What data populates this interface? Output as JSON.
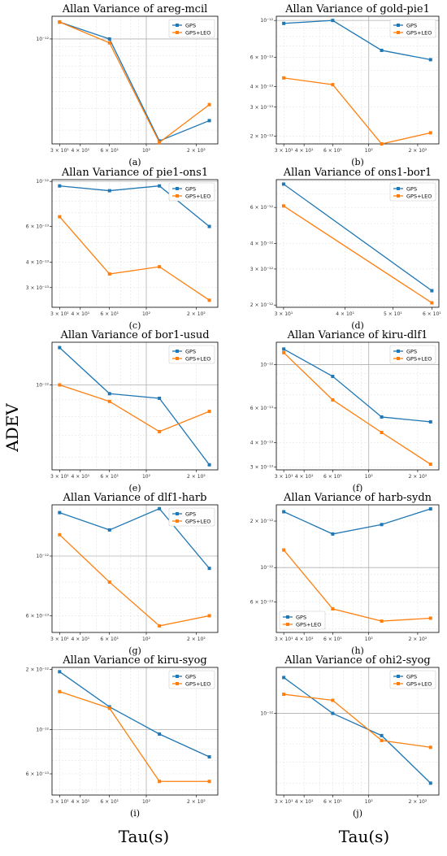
{
  "figure": {
    "ylabel": "ADEV",
    "xlabel": "Tau(s)",
    "colors": {
      "GPS": "#1f77b4",
      "GPS+LEO": "#ff7f0e"
    }
  },
  "chart_data": [
    {
      "type": "line",
      "title": "Allan Variance of areg-mcil",
      "caption": "(a)",
      "x": [
        30,
        60,
        120,
        240
      ],
      "xlim": [
        27,
        270
      ],
      "ylim": [
        2.5e-13,
        1.35e-12
      ],
      "log_x": true,
      "log_y": true,
      "yticks": [
        {
          "v": 1e-12,
          "label": "10⁻¹²"
        }
      ],
      "xticks": [
        {
          "v": 30,
          "label": "3 × 10¹"
        },
        {
          "v": 40,
          "label": "4 × 10¹"
        },
        {
          "v": 60,
          "label": "6 × 10¹"
        },
        {
          "v": 100,
          "label": "10²"
        },
        {
          "v": 200,
          "label": "2 × 10²"
        }
      ],
      "legend": "top-right",
      "series": [
        {
          "name": "GPS",
          "values": [
            1.25e-12,
            1e-12,
            2.6e-13,
            3.4e-13
          ]
        },
        {
          "name": "GPS+LEO",
          "values": [
            1.25e-12,
            9.5e-13,
            2.55e-13,
            4.2e-13
          ]
        }
      ]
    },
    {
      "type": "line",
      "title": "Allan Variance of gold-pie1",
      "caption": "(b)",
      "x": [
        30,
        60,
        120,
        240
      ],
      "xlim": [
        27,
        270
      ],
      "ylim": [
        1.8e-13,
        1.06e-12
      ],
      "log_x": true,
      "log_y": true,
      "yticks": [
        {
          "v": 2e-13,
          "label": "2 × 10⁻¹³"
        },
        {
          "v": 3e-13,
          "label": "3 × 10⁻¹³"
        },
        {
          "v": 4e-13,
          "label": "4 × 10⁻¹³"
        },
        {
          "v": 6e-13,
          "label": "6 × 10⁻¹³"
        },
        {
          "v": 1e-12,
          "label": "10⁻¹²"
        }
      ],
      "xticks": [
        {
          "v": 30,
          "label": "3 × 10¹"
        },
        {
          "v": 40,
          "label": "4 × 10¹"
        },
        {
          "v": 60,
          "label": "6 × 10¹"
        },
        {
          "v": 100,
          "label": "10²"
        },
        {
          "v": 200,
          "label": "2 × 10²"
        }
      ],
      "legend": "top-right",
      "series": [
        {
          "name": "GPS",
          "values": [
            9.6e-13,
            1e-12,
            6.6e-13,
            5.8e-13
          ]
        },
        {
          "name": "GPS+LEO",
          "values": [
            4.5e-13,
            4.1e-13,
            1.8e-13,
            2.1e-13
          ]
        }
      ]
    },
    {
      "type": "line",
      "title": "Allan Variance of pie1-ons1",
      "caption": "(c)",
      "x": [
        30,
        60,
        120,
        240
      ],
      "xlim": [
        27,
        270
      ],
      "ylim": [
        2.4e-13,
        1.02e-12
      ],
      "log_x": true,
      "log_y": true,
      "yticks": [
        {
          "v": 3e-13,
          "label": "3 × 10⁻¹³"
        },
        {
          "v": 4e-13,
          "label": "4 × 10⁻¹³"
        },
        {
          "v": 6e-13,
          "label": "6 × 10⁻¹³"
        },
        {
          "v": 1e-12,
          "label": "10⁻¹²"
        }
      ],
      "xticks": [
        {
          "v": 30,
          "label": "3 × 10¹"
        },
        {
          "v": 40,
          "label": "4 × 10¹"
        },
        {
          "v": 60,
          "label": "6 × 10¹"
        },
        {
          "v": 100,
          "label": "10²"
        },
        {
          "v": 200,
          "label": "2 × 10²"
        }
      ],
      "legend": "top-right",
      "series": [
        {
          "name": "GPS",
          "values": [
            9.5e-13,
            9e-13,
            9.5e-13,
            6e-13
          ]
        },
        {
          "name": "GPS+LEO",
          "values": [
            6.7e-13,
            3.5e-13,
            3.8e-13,
            2.6e-13
          ]
        }
      ]
    },
    {
      "type": "line",
      "title": "Allan Variance of ons1-bor1",
      "caption": "(d)",
      "x": [
        30,
        60
      ],
      "xlim": [
        29,
        62
      ],
      "ylim": [
        1.95e-12,
        8.2e-12
      ],
      "log_x": true,
      "log_y": true,
      "yticks": [
        {
          "v": 2e-12,
          "label": "2 × 10⁻¹²"
        },
        {
          "v": 3e-12,
          "label": "3 × 10⁻¹²"
        },
        {
          "v": 4e-12,
          "label": "4 × 10⁻¹²"
        },
        {
          "v": 6e-12,
          "label": "6 × 10⁻¹²"
        }
      ],
      "xticks": [
        {
          "v": 30,
          "label": "3 × 10¹"
        },
        {
          "v": 40,
          "label": "4 × 10¹"
        },
        {
          "v": 50,
          "label": "5 × 10¹"
        },
        {
          "v": 60,
          "label": "6 × 10¹"
        }
      ],
      "legend": "top-right",
      "series": [
        {
          "name": "GPS",
          "values": [
            7.8e-12,
            2.35e-12
          ]
        },
        {
          "name": "GPS+LEO",
          "values": [
            6.1e-12,
            2.05e-12
          ]
        }
      ]
    },
    {
      "type": "line",
      "title": "Allan Variance of bor1-usud",
      "caption": "(e)",
      "x": [
        30,
        60,
        120,
        240
      ],
      "xlim": [
        27,
        270
      ],
      "ylim": [
        5.5e-13,
        1.35e-12
      ],
      "log_x": true,
      "log_y": true,
      "yticks": [
        {
          "v": 1e-12,
          "label": "10⁻¹²"
        }
      ],
      "xticks": [
        {
          "v": 30,
          "label": "3 × 10¹"
        },
        {
          "v": 40,
          "label": "4 × 10¹"
        },
        {
          "v": 60,
          "label": "6 × 10¹"
        },
        {
          "v": 100,
          "label": "10²"
        },
        {
          "v": 200,
          "label": "2 × 10²"
        }
      ],
      "legend": "top-right",
      "series": [
        {
          "name": "GPS",
          "values": [
            1.3e-12,
            9.4e-13,
            9.1e-13,
            5.7e-13
          ]
        },
        {
          "name": "GPS+LEO",
          "values": [
            1e-12,
            8.9e-13,
            7.2e-13,
            8.3e-13
          ]
        }
      ]
    },
    {
      "type": "line",
      "title": "Allan Variance of kiru-dlf1",
      "caption": "(f)",
      "x": [
        30,
        60,
        120,
        240
      ],
      "xlim": [
        27,
        270
      ],
      "ylim": [
        2.9e-13,
        1.3e-12
      ],
      "log_x": true,
      "log_y": true,
      "yticks": [
        {
          "v": 3e-13,
          "label": "3 × 10⁻¹³"
        },
        {
          "v": 4e-13,
          "label": "4 × 10⁻¹³"
        },
        {
          "v": 6e-13,
          "label": "6 × 10⁻¹³"
        },
        {
          "v": 1e-12,
          "label": "10⁻¹²"
        }
      ],
      "xticks": [
        {
          "v": 30,
          "label": "3 × 10¹"
        },
        {
          "v": 40,
          "label": "4 × 10¹"
        },
        {
          "v": 60,
          "label": "6 × 10¹"
        },
        {
          "v": 100,
          "label": "10²"
        },
        {
          "v": 200,
          "label": "2 × 10²"
        }
      ],
      "legend": "top-right",
      "series": [
        {
          "name": "GPS",
          "values": [
            1.2e-12,
            8.7e-13,
            5.4e-13,
            5.1e-13
          ]
        },
        {
          "name": "GPS+LEO",
          "values": [
            1.15e-12,
            6.6e-13,
            4.5e-13,
            3.1e-13
          ]
        }
      ]
    },
    {
      "type": "line",
      "title": "Allan Variance of dlf1-harb",
      "caption": "(g)",
      "x": [
        30,
        60,
        120,
        240
      ],
      "xlim": [
        27,
        270
      ],
      "ylim": [
        5.2e-13,
        1.55e-12
      ],
      "log_x": true,
      "log_y": true,
      "yticks": [
        {
          "v": 6e-13,
          "label": "6 × 10⁻¹³"
        },
        {
          "v": 1e-12,
          "label": "10⁻¹²"
        }
      ],
      "xticks": [
        {
          "v": 30,
          "label": "3 × 10¹"
        },
        {
          "v": 40,
          "label": "4 × 10¹"
        },
        {
          "v": 60,
          "label": "6 × 10¹"
        },
        {
          "v": 100,
          "label": "10²"
        },
        {
          "v": 200,
          "label": "2 × 10²"
        }
      ],
      "legend": "top-right",
      "series": [
        {
          "name": "GPS",
          "values": [
            1.45e-12,
            1.25e-12,
            1.5e-12,
            9e-13
          ]
        },
        {
          "name": "GPS+LEO",
          "values": [
            1.2e-12,
            8e-13,
            5.5e-13,
            6e-13
          ]
        }
      ]
    },
    {
      "type": "line",
      "title": "Allan Variance of harb-sydn",
      "caption": "(h)",
      "x": [
        30,
        60,
        120,
        240
      ],
      "xlim": [
        27,
        270
      ],
      "ylim": [
        3.8e-13,
        2.55e-12
      ],
      "log_x": true,
      "log_y": true,
      "yticks": [
        {
          "v": 6e-13,
          "label": "6 × 10⁻¹³"
        },
        {
          "v": 1e-12,
          "label": "10⁻¹²"
        },
        {
          "v": 2e-12,
          "label": "2 × 10⁻¹²"
        }
      ],
      "xticks": [
        {
          "v": 30,
          "label": "3 × 10¹"
        },
        {
          "v": 40,
          "label": "4 × 10¹"
        },
        {
          "v": 60,
          "label": "6 × 10¹"
        },
        {
          "v": 100,
          "label": "10²"
        },
        {
          "v": 200,
          "label": "2 × 10²"
        }
      ],
      "legend": "bottom-left",
      "series": [
        {
          "name": "GPS",
          "values": [
            2.3e-12,
            1.65e-12,
            1.9e-12,
            2.4e-12
          ]
        },
        {
          "name": "GPS+LEO",
          "values": [
            1.3e-12,
            5.4e-13,
            4.5e-13,
            4.7e-13
          ]
        }
      ]
    },
    {
      "type": "line",
      "title": "Allan Variance of kiru-syog",
      "caption": "(i)",
      "x": [
        30,
        60,
        120,
        240
      ],
      "xlim": [
        27,
        270
      ],
      "ylim": [
        4.7e-13,
        2.05e-12
      ],
      "log_x": true,
      "log_y": true,
      "yticks": [
        {
          "v": 6e-13,
          "label": "6 × 10⁻¹³"
        },
        {
          "v": 1e-12,
          "label": "10⁻¹²"
        },
        {
          "v": 2e-12,
          "label": "2 × 10⁻¹²"
        }
      ],
      "xticks": [
        {
          "v": 30,
          "label": "3 × 10¹"
        },
        {
          "v": 40,
          "label": "4 × 10¹"
        },
        {
          "v": 60,
          "label": "6 × 10¹"
        },
        {
          "v": 100,
          "label": "10²"
        },
        {
          "v": 200,
          "label": "2 × 10²"
        }
      ],
      "legend": "top-right",
      "series": [
        {
          "name": "GPS",
          "values": [
            1.95e-12,
            1.3e-12,
            9.5e-13,
            7.3e-13
          ]
        },
        {
          "name": "GPS+LEO",
          "values": [
            1.55e-12,
            1.28e-12,
            5.5e-13,
            5.5e-13
          ]
        }
      ]
    },
    {
      "type": "line",
      "title": "Allan Variance of ohi2-syog",
      "caption": "(j)",
      "x": [
        30,
        60,
        120,
        240
      ],
      "xlim": [
        27,
        270
      ],
      "ylim": [
        5.5e-13,
        1.4e-12
      ],
      "log_x": true,
      "log_y": true,
      "yticks": [
        {
          "v": 1e-12,
          "label": "10⁻¹²"
        }
      ],
      "xticks": [
        {
          "v": 30,
          "label": "3 × 10¹"
        },
        {
          "v": 40,
          "label": "4 × 10¹"
        },
        {
          "v": 60,
          "label": "6 × 10¹"
        },
        {
          "v": 100,
          "label": "10²"
        },
        {
          "v": 200,
          "label": "2 × 10²"
        }
      ],
      "legend": "top-right",
      "series": [
        {
          "name": "GPS",
          "values": [
            1.3e-12,
            1e-12,
            8.5e-13,
            6e-13
          ]
        },
        {
          "name": "GPS+LEO",
          "values": [
            1.15e-12,
            1.1e-12,
            8.2e-13,
            7.8e-13
          ]
        }
      ]
    }
  ]
}
